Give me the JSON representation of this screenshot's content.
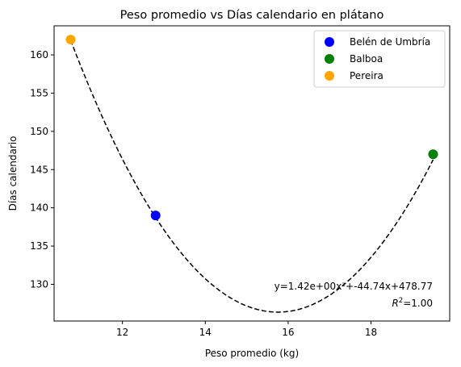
{
  "chart_data": {
    "type": "scatter",
    "title": "Peso promedio vs Días calendario en plátano",
    "xlabel": "Peso promedio (kg)",
    "ylabel": "Días calendario",
    "xlim": [
      10.35,
      19.9
    ],
    "ylim": [
      125.2,
      163.8
    ],
    "xticks": [
      12,
      14,
      16,
      18
    ],
    "yticks": [
      130,
      135,
      140,
      145,
      150,
      155,
      160
    ],
    "grid": false,
    "legend_position": "top-right",
    "series": [
      {
        "name": "Belén de Umbría",
        "color": "#0000ff",
        "points": [
          [
            12.8,
            139
          ]
        ]
      },
      {
        "name": "Balboa",
        "color": "#008000",
        "points": [
          [
            19.5,
            147
          ]
        ]
      },
      {
        "name": "Pereira",
        "color": "#ffa500",
        "points": [
          [
            10.75,
            162
          ]
        ]
      }
    ],
    "fit": {
      "type": "quadratic",
      "coefficients": [
        1.42,
        -44.74,
        478.77
      ],
      "x_range": [
        10.75,
        19.5
      ],
      "style": "dashed",
      "color": "#000000",
      "equation_text": "y=1.42e+00x²+-44.74x+478.77",
      "r2_prefix": "R",
      "r2_value": "=1.00"
    }
  }
}
